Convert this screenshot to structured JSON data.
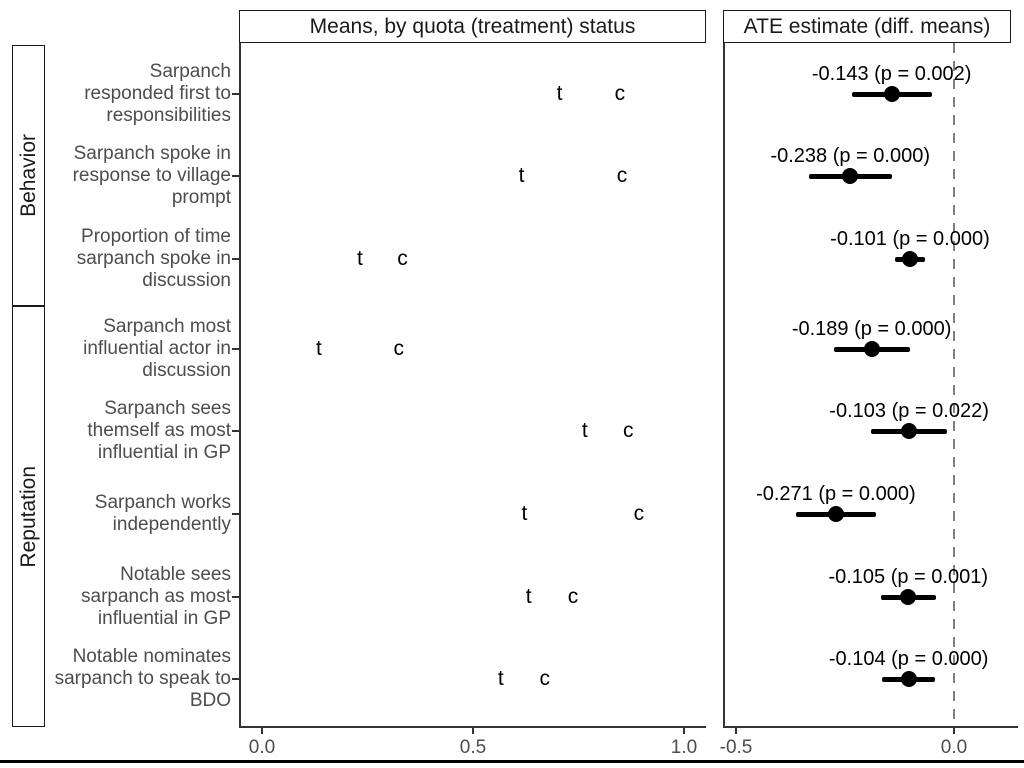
{
  "figure": {
    "strips": {
      "left": "Means, by quota (treatment) status",
      "right": "ATE estimate (diff. means)"
    },
    "facets": [
      {
        "label": "Behavior",
        "rows": 3
      },
      {
        "label": "Reputation",
        "rows": 5
      }
    ]
  },
  "chart_data": {
    "type": "scatter",
    "subtype": "faceted dot plot with forest plot of ATE estimates",
    "panels": [
      {
        "title": "Means, by quota (treatment) status",
        "xlim": [
          -0.054,
          1.05
        ],
        "xticks": [
          0.0,
          0.5,
          1.0
        ],
        "xtick_labels": [
          "0.0",
          "0.5",
          "1.0"
        ],
        "grid": false
      },
      {
        "title": "ATE estimate (diff. means)",
        "xlim": [
          -0.53,
          0.147
        ],
        "xticks": [
          -0.5,
          0.0
        ],
        "xtick_labels": [
          "-0.5",
          "0.0"
        ],
        "zero_reference_line": true,
        "grid": false
      }
    ],
    "marker_labels": {
      "treatment": "t",
      "control": "c"
    },
    "groups": [
      "Behavior",
      "Reputation"
    ],
    "rows": [
      {
        "group": "Behavior",
        "label": "Sarpanch responded first to responsibilities",
        "label_lines": [
          "Sarpanch",
          "responded first to",
          "responsibilities"
        ],
        "t_mean": 0.705,
        "c_mean": 0.848,
        "ate": -0.143,
        "p_value": "0.002",
        "ci": [
          -0.235,
          -0.051
        ],
        "annotation": "-0.143 (p = 0.002)"
      },
      {
        "group": "Behavior",
        "label": "Sarpanch spoke in response to village prompt",
        "label_lines": [
          "Sarpanch spoke in",
          "response to village",
          "prompt"
        ],
        "t_mean": 0.615,
        "c_mean": 0.853,
        "ate": -0.238,
        "p_value": "0.000",
        "ci": [
          -0.333,
          -0.143
        ],
        "annotation": "-0.238 (p = 0.000)"
      },
      {
        "group": "Behavior",
        "label": "Proportion of time sarpanch spoke in discussion",
        "label_lines": [
          "Proportion of time",
          "sarpanch spoke in",
          "discussion"
        ],
        "t_mean": 0.232,
        "c_mean": 0.333,
        "ate": -0.101,
        "p_value": "0.000",
        "ci": [
          -0.136,
          -0.066
        ],
        "annotation": "-0.101 (p = 0.000)"
      },
      {
        "group": "Reputation",
        "label": "Sarpanch most influential actor in discussion",
        "label_lines": [
          "Sarpanch most",
          "influential actor in",
          "discussion"
        ],
        "t_mean": 0.135,
        "c_mean": 0.324,
        "ate": -0.189,
        "p_value": "0.000",
        "ci": [
          -0.276,
          -0.102
        ],
        "annotation": "-0.189 (p = 0.000)"
      },
      {
        "group": "Reputation",
        "label": "Sarpanch sees themself as most influential in GP",
        "label_lines": [
          "Sarpanch sees",
          "themself as most",
          "influential in GP"
        ],
        "t_mean": 0.765,
        "c_mean": 0.868,
        "ate": -0.103,
        "p_value": "0.022",
        "ci": [
          -0.191,
          -0.015
        ],
        "annotation": "-0.103 (p = 0.022)"
      },
      {
        "group": "Reputation",
        "label": "Sarpanch works independently",
        "label_lines": [
          "Sarpanch works",
          "independently"
        ],
        "t_mean": 0.622,
        "c_mean": 0.893,
        "ate": -0.271,
        "p_value": "0.000",
        "ci": [
          -0.362,
          -0.18
        ],
        "annotation": "-0.271 (p = 0.000)"
      },
      {
        "group": "Reputation",
        "label": "Notable sees sarpanch as most influential in GP",
        "label_lines": [
          "Notable sees",
          "sarpanch as most",
          "influential in GP"
        ],
        "t_mean": 0.632,
        "c_mean": 0.737,
        "ate": -0.105,
        "p_value": "0.001",
        "ci": [
          -0.168,
          -0.042
        ],
        "annotation": "-0.105 (p = 0.001)"
      },
      {
        "group": "Reputation",
        "label": "Notable nominates sarpanch to speak to BDO",
        "label_lines": [
          "Notable nominates",
          "sarpanch to speak to",
          "BDO"
        ],
        "t_mean": 0.566,
        "c_mean": 0.67,
        "ate": -0.104,
        "p_value": "0.000",
        "ci": [
          -0.165,
          -0.043
        ],
        "annotation": "-0.104 (p = 0.000)"
      }
    ],
    "colors": {
      "marker": "#000000",
      "ci": "#000000",
      "dashed_zero_line": "#808080",
      "axis_text": "#4d4d4d",
      "axis_line": "#333333",
      "strip_text": "#1a1a1a",
      "strip_border": "#1a1a1a"
    },
    "legend_position": "none"
  }
}
